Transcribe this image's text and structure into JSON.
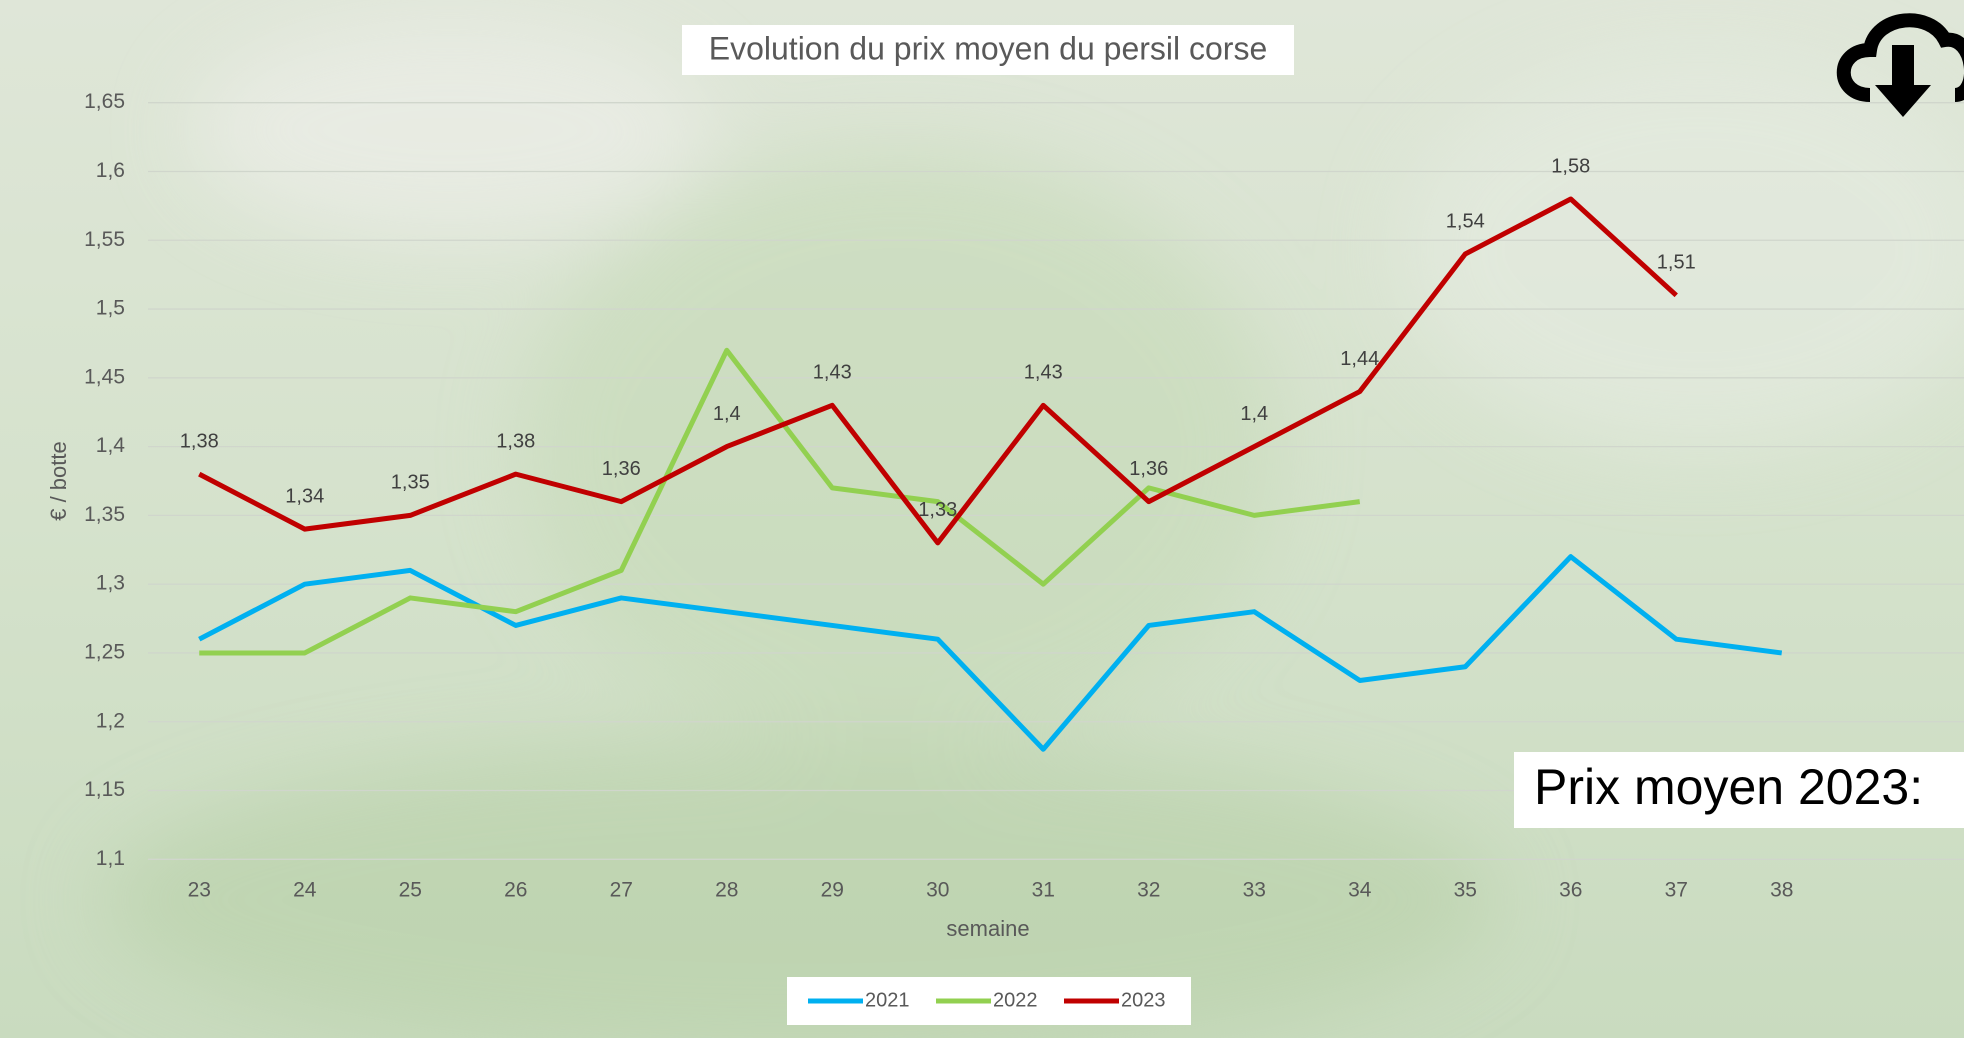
{
  "chart_data": {
    "type": "line",
    "title": "Evolution du prix moyen du persil corse",
    "x_label": "semaine",
    "y_label": "€ / botte",
    "annotation": "Prix moyen 2023:",
    "categories": [
      "23",
      "24",
      "25",
      "26",
      "27",
      "28",
      "29",
      "30",
      "31",
      "32",
      "33",
      "34",
      "35",
      "36",
      "37",
      "38"
    ],
    "ylim": [
      1.1,
      1.65
    ],
    "yticks": [
      {
        "value": 1.1,
        "label": "1,1"
      },
      {
        "value": 1.15,
        "label": "1,15"
      },
      {
        "value": 1.2,
        "label": "1,2"
      },
      {
        "value": 1.25,
        "label": "1,25"
      },
      {
        "value": 1.3,
        "label": "1,3"
      },
      {
        "value": 1.35,
        "label": "1,35"
      },
      {
        "value": 1.4,
        "label": "1,4"
      },
      {
        "value": 1.45,
        "label": "1,45"
      },
      {
        "value": 1.5,
        "label": "1,5"
      },
      {
        "value": 1.55,
        "label": "1,55"
      },
      {
        "value": 1.6,
        "label": "1,6"
      },
      {
        "value": 1.65,
        "label": "1,65"
      }
    ],
    "grid": true,
    "legend": "bottom",
    "series": [
      {
        "name": "2021",
        "color": "#00b0f0",
        "values": [
          1.26,
          1.3,
          1.31,
          1.27,
          1.29,
          1.28,
          1.27,
          1.26,
          1.18,
          1.27,
          1.28,
          1.23,
          1.24,
          1.32,
          1.26,
          1.25
        ]
      },
      {
        "name": "2022",
        "color": "#92d050",
        "values": [
          1.25,
          1.25,
          1.29,
          1.28,
          1.31,
          1.47,
          1.37,
          1.36,
          1.3,
          1.37,
          1.35,
          1.36,
          null,
          null,
          null,
          null
        ]
      },
      {
        "name": "2023",
        "color": "#c00000",
        "values": [
          1.38,
          1.34,
          1.35,
          1.38,
          1.36,
          1.4,
          1.43,
          1.33,
          1.43,
          1.36,
          1.4,
          1.44,
          1.54,
          1.58,
          1.51,
          null
        ],
        "value_labels": [
          "1,38",
          "1,34",
          "1,35",
          "1,38",
          "1,36",
          "1,4",
          "1,43",
          "1,33",
          "1,43",
          "1,36",
          "1,4",
          "1,44",
          "1,54",
          "1,58",
          "1,51",
          null
        ]
      }
    ]
  }
}
